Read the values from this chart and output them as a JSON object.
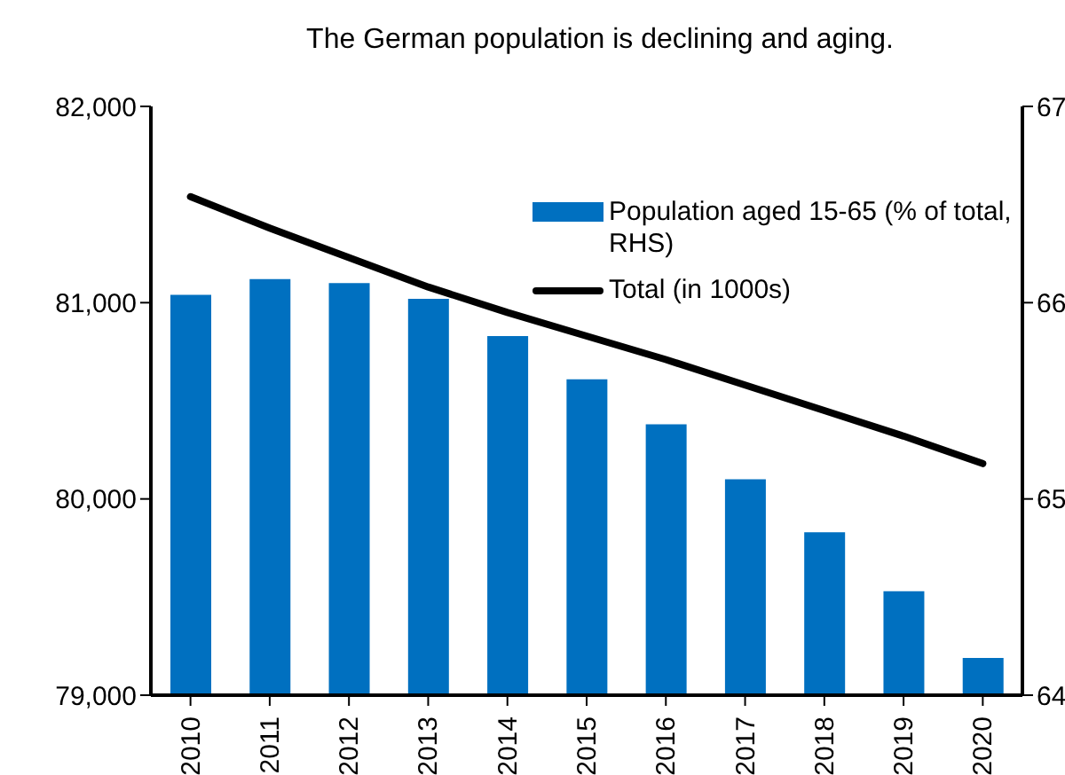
{
  "chart_data": {
    "type": "bar",
    "title": "The German population is declining and aging.",
    "categories": [
      "2010",
      "2011",
      "2012",
      "2013",
      "2014",
      "2015",
      "2016",
      "2017",
      "2018",
      "2019",
      "2020"
    ],
    "series": [
      {
        "name": "Population aged 15-65 (% of total, RHS)",
        "axis": "y2",
        "color": "#0070c0",
        "values": [
          66.04,
          66.12,
          66.1,
          66.02,
          65.83,
          65.61,
          65.38,
          65.1,
          64.83,
          64.53,
          64.19
        ]
      },
      {
        "name": "Total (in 1000s)",
        "type": "line",
        "color": "#000000",
        "values": [
          81540,
          81380,
          81230,
          81080,
          80950,
          80830,
          80710,
          80580,
          80450,
          80320,
          80180
        ]
      }
    ],
    "ylim": [
      79000,
      82000
    ],
    "yticks": [
      {
        "value": 79000,
        "label": "79,000"
      },
      {
        "value": 80000,
        "label": "80,000"
      },
      {
        "value": 81000,
        "label": "81,000"
      },
      {
        "value": 82000,
        "label": "82,000"
      }
    ],
    "y2lim": [
      64,
      67
    ],
    "y2ticks": [
      64,
      65,
      66,
      67
    ],
    "grid": false,
    "legend": "top right",
    "marker": "none",
    "line_style": "solid"
  }
}
